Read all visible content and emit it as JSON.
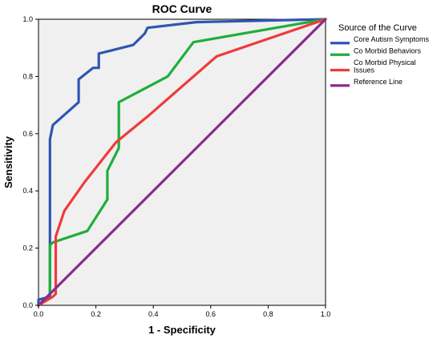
{
  "chart_data": {
    "type": "line",
    "title": "ROC Curve",
    "xlabel": "1 - Specificity",
    "ylabel": "Sensitivity",
    "xlim": [
      0,
      1
    ],
    "ylim": [
      0,
      1
    ],
    "x_ticks": [
      "0.0",
      "0.2",
      "0.4",
      "0.6",
      "0.8",
      "1.0"
    ],
    "y_ticks": [
      "0.0",
      "0.2",
      "0.4",
      "0.6",
      "0.8",
      "1.0"
    ],
    "grid": false,
    "legend": {
      "title": "Source of the Curve",
      "placement": "right"
    },
    "series": [
      {
        "name": "Core Autism Symptoms",
        "color": "#2f56b0",
        "points": [
          [
            0,
            0
          ],
          [
            0,
            0.02
          ],
          [
            0.04,
            0.03
          ],
          [
            0.04,
            0.58
          ],
          [
            0.05,
            0.63
          ],
          [
            0.14,
            0.71
          ],
          [
            0.14,
            0.79
          ],
          [
            0.19,
            0.83
          ],
          [
            0.21,
            0.83
          ],
          [
            0.21,
            0.88
          ],
          [
            0.25,
            0.89
          ],
          [
            0.33,
            0.91
          ],
          [
            0.37,
            0.95
          ],
          [
            0.38,
            0.97
          ],
          [
            0.55,
            0.99
          ],
          [
            1,
            1
          ]
        ]
      },
      {
        "name": "Co Morbid Behaviors",
        "color": "#1fae3a",
        "points": [
          [
            0,
            0
          ],
          [
            0.04,
            0.04
          ],
          [
            0.04,
            0.21
          ],
          [
            0.05,
            0.22
          ],
          [
            0.17,
            0.26
          ],
          [
            0.24,
            0.37
          ],
          [
            0.24,
            0.47
          ],
          [
            0.28,
            0.55
          ],
          [
            0.28,
            0.71
          ],
          [
            0.45,
            0.8
          ],
          [
            0.54,
            0.92
          ],
          [
            1,
            1
          ]
        ]
      },
      {
        "name": "Co Morbid Physical Issues",
        "color": "#f03a3a",
        "points": [
          [
            0,
            0
          ],
          [
            0.05,
            0.03
          ],
          [
            0.06,
            0.04
          ],
          [
            0.06,
            0.24
          ],
          [
            0.09,
            0.33
          ],
          [
            0.16,
            0.43
          ],
          [
            0.27,
            0.57
          ],
          [
            0.38,
            0.66
          ],
          [
            0.62,
            0.87
          ],
          [
            1,
            1
          ]
        ]
      },
      {
        "name": "Reference Line",
        "color": "#8b2a8e",
        "points": [
          [
            0,
            0
          ],
          [
            1,
            1
          ]
        ]
      }
    ]
  }
}
